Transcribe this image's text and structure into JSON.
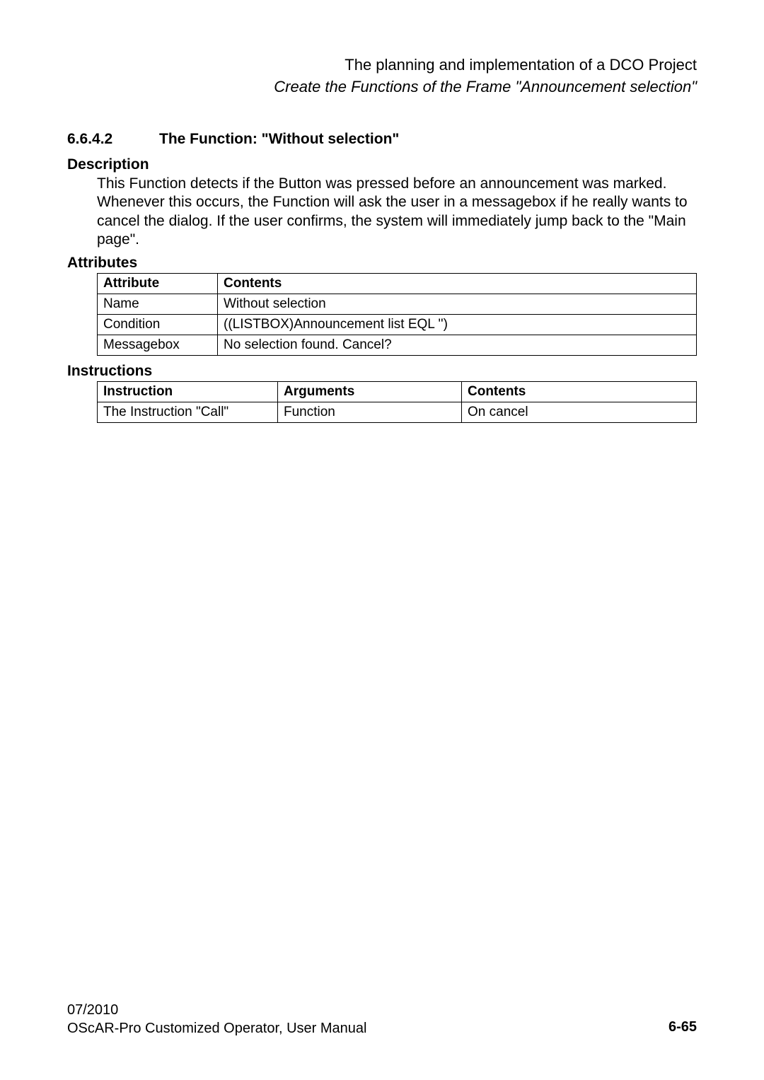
{
  "header": {
    "line1": "The planning and implementation of a DCO Project",
    "line2": "Create the Functions of the Frame \"Announcement selection\""
  },
  "section": {
    "number": "6.6.4.2",
    "title": "The Function: \"Without selection\""
  },
  "description": {
    "heading": "Description",
    "body": "This Function detects if the Button was pressed before an announcement was marked. Whenever this occurs, the Function will ask the user in a messagebox if he really wants to cancel the dialog. If the user confirms, the system will immediately jump back to the \"Main page\"."
  },
  "attributes": {
    "heading": "Attributes",
    "columns": [
      "Attribute",
      "Contents"
    ],
    "rows": [
      [
        "Name",
        "Without selection"
      ],
      [
        "Condition",
        "((LISTBOX)Announcement list EQL '')"
      ],
      [
        "Messagebox",
        "No selection found. Cancel?"
      ]
    ]
  },
  "instructions": {
    "heading": "Instructions",
    "columns": [
      "Instruction",
      "Arguments",
      "Contents"
    ],
    "rows": [
      [
        "The Instruction \"Call\"",
        "Function",
        "On cancel"
      ]
    ]
  },
  "footer": {
    "date": "07/2010",
    "product": "OScAR-Pro Customized Operator, User Manual",
    "page": "6-65"
  }
}
